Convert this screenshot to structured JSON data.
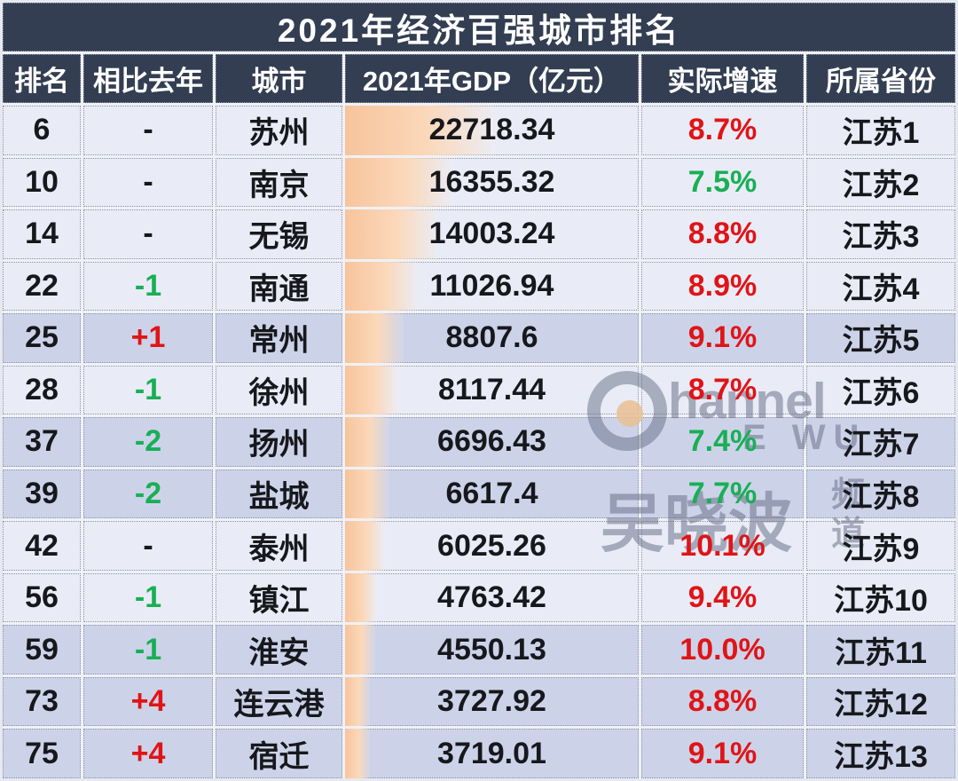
{
  "title": "2021年经济百强城市排名",
  "chart_data": {
    "type": "table",
    "title": "2021年经济百强城市排名",
    "columns": [
      "排名",
      "相比去年",
      "城市",
      "2021年GDP（亿元）",
      "实际增速",
      "所属省份"
    ],
    "rows": [
      {
        "rank": "6",
        "change": "-",
        "city": "苏州",
        "gdp": 22718.34,
        "gdp_text": "22718.34",
        "growth": 8.7,
        "growth_text": "8.7%",
        "province": "江苏1"
      },
      {
        "rank": "10",
        "change": "-",
        "city": "南京",
        "gdp": 16355.32,
        "gdp_text": "16355.32",
        "growth": 7.5,
        "growth_text": "7.5%",
        "province": "江苏2"
      },
      {
        "rank": "14",
        "change": "-",
        "city": "无锡",
        "gdp": 14003.24,
        "gdp_text": "14003.24",
        "growth": 8.8,
        "growth_text": "8.8%",
        "province": "江苏3"
      },
      {
        "rank": "22",
        "change": "-1",
        "city": "南通",
        "gdp": 11026.94,
        "gdp_text": "11026.94",
        "growth": 8.9,
        "growth_text": "8.9%",
        "province": "江苏4"
      },
      {
        "rank": "25",
        "change": "+1",
        "city": "常州",
        "gdp": 8807.6,
        "gdp_text": "8807.6",
        "growth": 9.1,
        "growth_text": "9.1%",
        "province": "江苏5"
      },
      {
        "rank": "28",
        "change": "-1",
        "city": "徐州",
        "gdp": 8117.44,
        "gdp_text": "8117.44",
        "growth": 8.7,
        "growth_text": "8.7%",
        "province": "江苏6"
      },
      {
        "rank": "37",
        "change": "-2",
        "city": "扬州",
        "gdp": 6696.43,
        "gdp_text": "6696.43",
        "growth": 7.4,
        "growth_text": "7.4%",
        "province": "江苏7"
      },
      {
        "rank": "39",
        "change": "-2",
        "city": "盐城",
        "gdp": 6617.4,
        "gdp_text": "6617.4",
        "growth": 7.7,
        "growth_text": "7.7%",
        "province": "江苏8"
      },
      {
        "rank": "42",
        "change": "-",
        "city": "泰州",
        "gdp": 6025.26,
        "gdp_text": "6025.26",
        "growth": 10.1,
        "growth_text": "10.1%",
        "province": "江苏9"
      },
      {
        "rank": "56",
        "change": "-1",
        "city": "镇江",
        "gdp": 4763.42,
        "gdp_text": "4763.42",
        "growth": 9.4,
        "growth_text": "9.4%",
        "province": "江苏10"
      },
      {
        "rank": "59",
        "change": "-1",
        "city": "淮安",
        "gdp": 4550.13,
        "gdp_text": "4550.13",
        "growth": 10.0,
        "growth_text": "10.0%",
        "province": "江苏11"
      },
      {
        "rank": "73",
        "change": "+4",
        "city": "连云港",
        "gdp": 3727.92,
        "gdp_text": "3727.92",
        "growth": 8.8,
        "growth_text": "8.8%",
        "province": "江苏12"
      },
      {
        "rank": "75",
        "change": "+4",
        "city": "宿迁",
        "gdp": 3719.01,
        "gdp_text": "3719.01",
        "growth": 9.1,
        "growth_text": "9.1%",
        "province": "江苏13"
      }
    ]
  },
  "rows_meta": [
    {
      "change_dir": "neutral",
      "growth_dir": "up",
      "shaded": false
    },
    {
      "change_dir": "neutral",
      "growth_dir": "down",
      "shaded": false
    },
    {
      "change_dir": "neutral",
      "growth_dir": "up",
      "shaded": false
    },
    {
      "change_dir": "down",
      "growth_dir": "up",
      "shaded": false
    },
    {
      "change_dir": "up",
      "growth_dir": "up",
      "shaded": true
    },
    {
      "change_dir": "down",
      "growth_dir": "up",
      "shaded": false
    },
    {
      "change_dir": "down",
      "growth_dir": "down",
      "shaded": true
    },
    {
      "change_dir": "down",
      "growth_dir": "down",
      "shaded": true
    },
    {
      "change_dir": "neutral",
      "growth_dir": "up",
      "shaded": false
    },
    {
      "change_dir": "down",
      "growth_dir": "up",
      "shaded": false
    },
    {
      "change_dir": "down",
      "growth_dir": "up",
      "shaded": true
    },
    {
      "change_dir": "up",
      "growth_dir": "up",
      "shaded": true
    },
    {
      "change_dir": "up",
      "growth_dir": "up",
      "shaded": true
    }
  ],
  "bar": {
    "max_value": 22718.34,
    "max_width_pct": 51.5
  },
  "colors": {
    "header_bg": "#333e52",
    "header_text": "#ffffff",
    "row_light": "#e9ecf6",
    "row_dark": "#ccd3e9",
    "frame_bg": "#f0f1f6",
    "border_dot": "#8c94ab",
    "up_red": "#e01417",
    "down_green": "#19af55",
    "text_dark": "#17181c",
    "bar_from": "#f7c49c"
  },
  "watermark": {
    "line1": "hannel",
    "line2": "E WU",
    "name": "吴晓波",
    "channel_char1": "频",
    "channel_char2": "道"
  }
}
